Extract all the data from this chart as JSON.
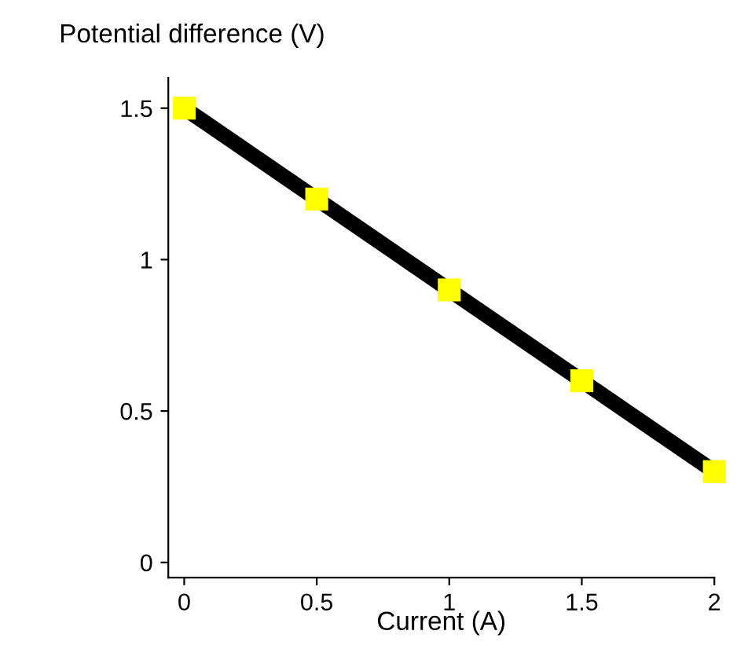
{
  "chart_data": {
    "type": "line",
    "ylabel": "Potential difference (V)",
    "xlabel": "Current (A)",
    "x": [
      0,
      0.5,
      1,
      1.5,
      2
    ],
    "series": [
      {
        "color": "#000000",
        "colors": [
          "#ffff00",
          "#ffff00",
          "#ffff00",
          "#ffff00",
          "#ffff00"
        ],
        "values": [
          1.5,
          1.2,
          0.9,
          0.6,
          0.3
        ]
      }
    ],
    "xlim": [
      -0.06,
      2.0
    ],
    "xticks": [
      0,
      0.5,
      1,
      1.5,
      2
    ],
    "ylim": [
      -0.05,
      1.6
    ],
    "yticks": [
      0,
      0.5,
      1,
      1.5
    ],
    "grid": false,
    "legend": false,
    "marker": "square",
    "line_style": "solid"
  }
}
